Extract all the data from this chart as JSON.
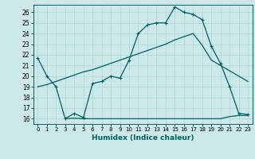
{
  "xlabel": "Humidex (Indice chaleur)",
  "bg_color": "#cce8e8",
  "line_color": "#006060",
  "grid_color": "#aad8d8",
  "xlim": [
    -0.5,
    23.5
  ],
  "ylim": [
    15.5,
    26.7
  ],
  "xticks": [
    0,
    1,
    2,
    3,
    4,
    5,
    6,
    7,
    8,
    9,
    10,
    11,
    12,
    13,
    14,
    15,
    16,
    17,
    18,
    19,
    20,
    21,
    22,
    23
  ],
  "yticks": [
    16,
    17,
    18,
    19,
    20,
    21,
    22,
    23,
    24,
    25,
    26
  ],
  "line1_x": [
    0,
    1,
    2,
    3,
    4,
    5,
    6,
    7,
    8,
    9,
    10,
    11,
    12,
    13,
    14,
    15,
    16,
    17,
    18,
    19,
    20,
    21,
    22,
    23
  ],
  "line1_y": [
    21.7,
    20.0,
    19.0,
    16.0,
    16.5,
    16.1,
    19.3,
    19.5,
    20.0,
    19.8,
    21.5,
    24.0,
    24.8,
    25.0,
    25.0,
    26.5,
    26.0,
    25.8,
    25.3,
    22.8,
    21.2,
    19.0,
    16.5,
    16.4
  ],
  "line2_x": [
    0,
    1,
    2,
    3,
    4,
    5,
    6,
    7,
    8,
    9,
    10,
    11,
    12,
    13,
    14,
    15,
    16,
    17,
    18,
    19,
    20,
    21,
    22,
    23
  ],
  "line2_y": [
    19.0,
    19.2,
    19.5,
    19.8,
    20.1,
    20.4,
    20.6,
    20.9,
    21.2,
    21.5,
    21.8,
    22.1,
    22.4,
    22.7,
    23.0,
    23.4,
    23.7,
    24.0,
    22.9,
    21.5,
    21.0,
    20.5,
    20.0,
    19.5
  ],
  "line3_x": [
    3,
    4,
    5,
    6,
    7,
    8,
    9,
    10,
    11,
    12,
    13,
    14,
    15,
    16,
    17,
    18,
    19,
    20,
    21,
    22,
    23
  ],
  "line3_y": [
    16.0,
    16.05,
    16.0,
    16.0,
    16.0,
    16.0,
    16.0,
    16.0,
    16.0,
    16.0,
    16.0,
    16.0,
    16.0,
    16.0,
    16.0,
    16.0,
    16.0,
    16.0,
    16.2,
    16.3,
    16.3
  ]
}
